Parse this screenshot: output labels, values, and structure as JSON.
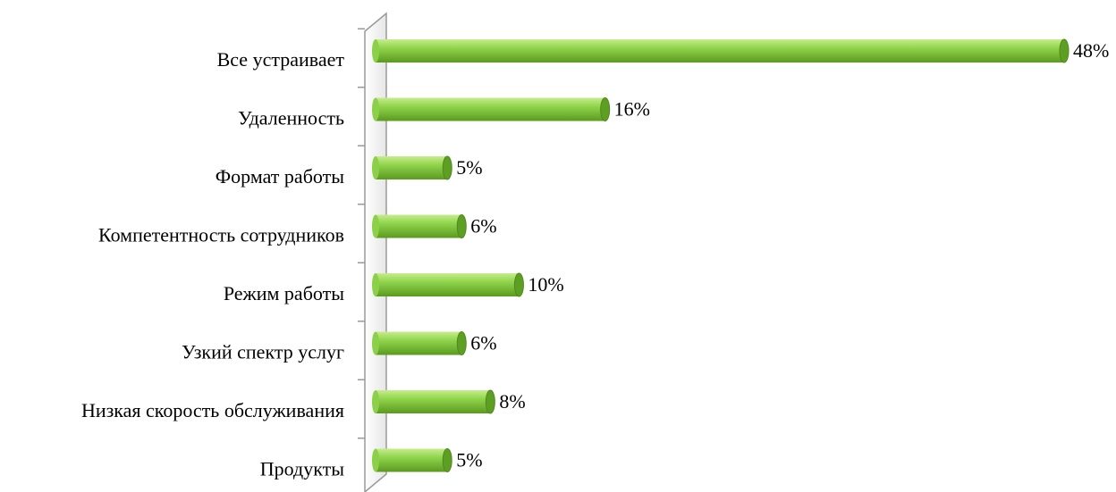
{
  "chart_data": {
    "type": "bar",
    "orientation": "horizontal",
    "categories": [
      "Все устраивает",
      "Удаленность",
      "Формат работы",
      "Компетентность сотрудников",
      "Режим работы",
      "Узкий спектр услуг",
      "Низкая скорость обслуживания",
      "Продукты"
    ],
    "values": [
      48,
      16,
      5,
      6,
      10,
      6,
      8,
      5
    ],
    "value_labels": [
      "48%",
      "16%",
      "5%",
      "6%",
      "10%",
      "6%",
      "8%",
      "5%"
    ],
    "color": "#7cc23a"
  }
}
